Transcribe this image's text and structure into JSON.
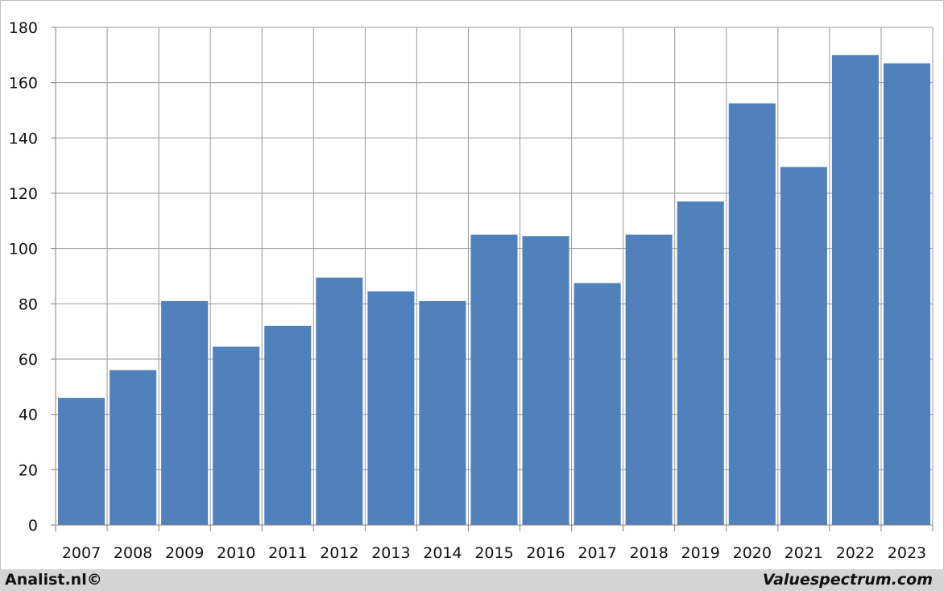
{
  "chart_data": {
    "type": "bar",
    "categories": [
      "2007",
      "2008",
      "2009",
      "2010",
      "2011",
      "2012",
      "2013",
      "2014",
      "2015",
      "2016",
      "2017",
      "2018",
      "2019",
      "2020",
      "2021",
      "2022",
      "2023"
    ],
    "values": [
      46,
      56,
      81,
      64.5,
      72,
      89.5,
      84.5,
      81,
      105,
      104.5,
      87.5,
      105,
      117,
      152.5,
      129.5,
      170,
      167
    ],
    "title": "",
    "xlabel": "",
    "ylabel": "",
    "ylim": [
      0,
      180
    ],
    "yticks": [
      "0",
      "20",
      "40",
      "60",
      "80",
      "100",
      "120",
      "140",
      "160",
      "180"
    ],
    "grid": true,
    "bar_color": "#4f81bd"
  },
  "footer": {
    "left": "Analist.nl©",
    "right": "Valuespectrum.com"
  }
}
